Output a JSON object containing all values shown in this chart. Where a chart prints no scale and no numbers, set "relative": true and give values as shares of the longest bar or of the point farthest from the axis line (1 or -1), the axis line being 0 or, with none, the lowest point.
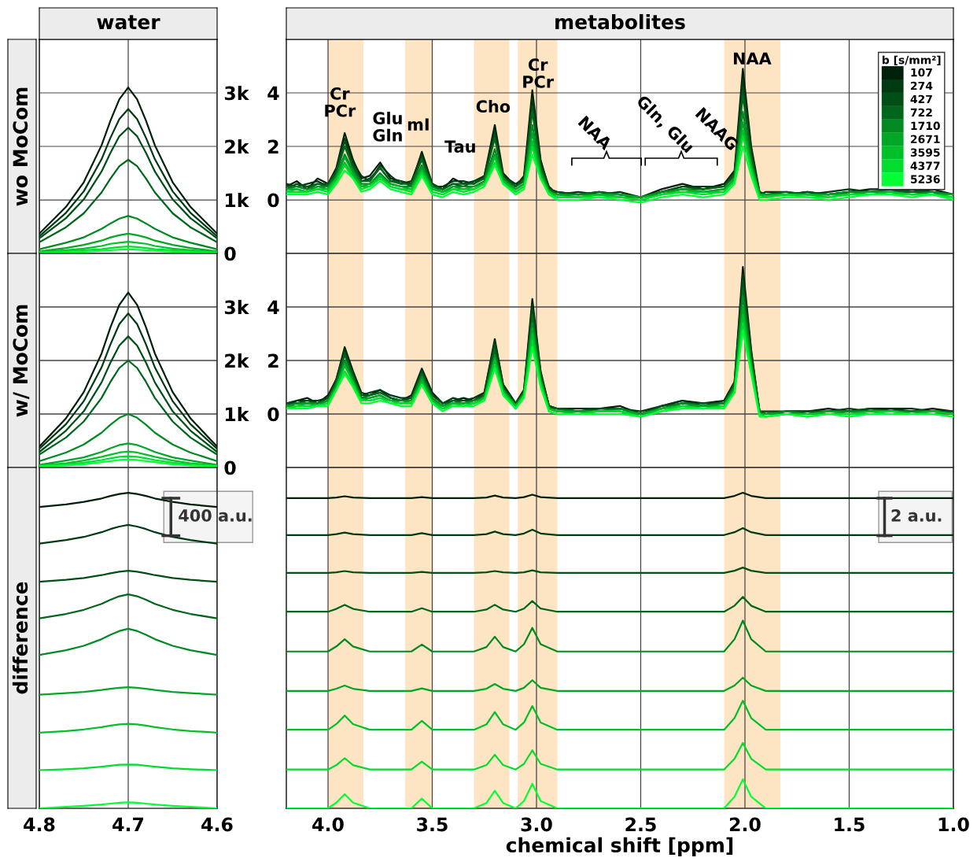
{
  "chart_data": [
    {
      "type": "line",
      "title": "water",
      "ylabel": "wo MoCom",
      "xlim": [
        4.8,
        4.6
      ],
      "xticks": [
        4.8,
        4.7,
        4.6
      ],
      "ylim": [
        0,
        4000
      ],
      "yticks": [
        0,
        {
          "value": 1000,
          "label": "1k"
        },
        {
          "value": 2000,
          "label": "2k"
        },
        {
          "value": 3000,
          "label": "3k"
        }
      ],
      "grid": true,
      "tick_labels": "y",
      "x": [
        4.8,
        4.77,
        4.75,
        4.73,
        4.72,
        4.71,
        4.7,
        4.69,
        4.68,
        4.67,
        4.65,
        4.63,
        4.6
      ],
      "series": [
        {
          "color": "#00200a",
          "values": [
            370,
            870,
            1330,
            2020,
            2480,
            2880,
            3100,
            2880,
            2480,
            2020,
            1330,
            870,
            370
          ]
        },
        {
          "color": "#003a12",
          "values": [
            320,
            760,
            1160,
            1760,
            2160,
            2510,
            2700,
            2510,
            2160,
            1760,
            1160,
            760,
            320
          ]
        },
        {
          "color": "#004f17",
          "values": [
            280,
            660,
            1010,
            1530,
            1880,
            2190,
            2350,
            2190,
            1880,
            1530,
            1010,
            660,
            280
          ]
        },
        {
          "color": "#00661c",
          "values": [
            210,
            490,
            750,
            1140,
            1400,
            1630,
            1750,
            1630,
            1400,
            1140,
            750,
            490,
            210
          ]
        },
        {
          "color": "#008a21",
          "values": [
            80,
            200,
            300,
            460,
            560,
            650,
            700,
            650,
            560,
            460,
            300,
            200,
            80
          ]
        },
        {
          "color": "#00a626",
          "values": [
            40,
            100,
            160,
            240,
            300,
            340,
            370,
            340,
            300,
            240,
            160,
            100,
            40
          ]
        },
        {
          "color": "#00c02a",
          "values": [
            30,
            60,
            90,
            140,
            180,
            200,
            220,
            200,
            180,
            140,
            90,
            60,
            30
          ]
        },
        {
          "color": "#00dd2e",
          "values": [
            20,
            40,
            60,
            80,
            100,
            120,
            130,
            120,
            100,
            80,
            60,
            40,
            20
          ]
        },
        {
          "color": "#00ff33",
          "values": [
            10,
            20,
            30,
            50,
            60,
            70,
            80,
            70,
            60,
            50,
            30,
            20,
            10
          ]
        }
      ]
    },
    {
      "type": "line",
      "title": "metabolites",
      "xlim": [
        4.2,
        1.0
      ],
      "xticks": [
        4.0,
        3.5,
        3.0,
        2.5,
        2.0,
        1.5,
        1.0
      ],
      "ylim": [
        -2,
        6
      ],
      "yticks": [
        0,
        2,
        4
      ],
      "grid": true,
      "tick_labels": "y",
      "legend": "top right",
      "legend_title": "b [s/mm²]",
      "bands": [
        {
          "axis": "x",
          "from": 4.0,
          "to": 3.83,
          "color": "#fde0b8"
        },
        {
          "axis": "x",
          "from": 3.63,
          "to": 3.5,
          "color": "#fde0b8"
        },
        {
          "axis": "x",
          "from": 3.3,
          "to": 3.13,
          "color": "#fde0b8"
        },
        {
          "axis": "x",
          "from": 3.09,
          "to": 2.9,
          "color": "#fde0b8"
        },
        {
          "axis": "x",
          "from": 2.1,
          "to": 1.83,
          "color": "#fde0b8"
        }
      ],
      "annotations": [
        "Cr\nPCr",
        "Glu\nGln",
        "mI",
        "Tau",
        "Cho",
        "Cr\nPCr",
        "NAA",
        "NAA",
        "Gln, Glu",
        "NAAG"
      ],
      "x": [
        4.2,
        4.15,
        4.1,
        4.05,
        4.0,
        3.96,
        3.92,
        3.88,
        3.84,
        3.8,
        3.75,
        3.7,
        3.65,
        3.6,
        3.55,
        3.5,
        3.45,
        3.4,
        3.35,
        3.3,
        3.25,
        3.2,
        3.16,
        3.1,
        3.06,
        3.02,
        2.98,
        2.94,
        2.9,
        2.8,
        2.7,
        2.6,
        2.5,
        2.4,
        2.3,
        2.2,
        2.1,
        2.05,
        2.01,
        1.97,
        1.93,
        1.9,
        1.8,
        1.7,
        1.6,
        1.5,
        1.4,
        1.3,
        1.2,
        1.1,
        1.0
      ],
      "series": [
        {
          "name": "107",
          "color": "#00200a",
          "values": [
            0.5,
            0.7,
            0.4,
            0.8,
            0.6,
            1.2,
            2.5,
            1.5,
            0.8,
            0.9,
            1.4,
            0.8,
            0.7,
            0.6,
            1.8,
            0.6,
            0.4,
            0.8,
            0.6,
            0.7,
            0.9,
            2.8,
            1.0,
            0.5,
            0.9,
            4.1,
            1.5,
            0.4,
            0.3,
            0.2,
            0.3,
            0.2,
            0.1,
            0.4,
            0.6,
            0.4,
            0.6,
            1.1,
            4.9,
            2.0,
            0.3,
            0.2,
            0.2,
            0.3,
            0.2,
            0.3,
            0.4,
            0.4,
            0.3,
            0.4,
            0.2
          ]
        },
        {
          "name": "274",
          "color": "#003a12",
          "values": [
            0.6,
            0.5,
            0.6,
            0.7,
            0.5,
            1.1,
            2.3,
            1.4,
            0.9,
            0.7,
            1.3,
            0.9,
            0.6,
            0.7,
            1.7,
            0.5,
            0.5,
            0.7,
            0.7,
            0.6,
            0.9,
            2.6,
            0.9,
            0.6,
            0.8,
            3.8,
            1.4,
            0.5,
            0.2,
            0.3,
            0.2,
            0.3,
            0.1,
            0.3,
            0.5,
            0.5,
            0.5,
            1.0,
            4.5,
            1.9,
            0.2,
            0.3,
            0.3,
            0.2,
            0.3,
            0.4,
            0.3,
            0.3,
            0.4,
            0.3,
            0.2
          ]
        },
        {
          "name": "427",
          "color": "#004f17",
          "values": [
            0.4,
            0.6,
            0.5,
            0.6,
            0.6,
            1.1,
            2.2,
            1.3,
            0.7,
            0.8,
            1.2,
            0.7,
            0.7,
            0.5,
            1.6,
            0.6,
            0.4,
            0.6,
            0.5,
            0.7,
            0.8,
            2.4,
            0.9,
            0.5,
            0.8,
            3.5,
            1.3,
            0.4,
            0.3,
            0.2,
            0.2,
            0.2,
            0.1,
            0.3,
            0.5,
            0.4,
            0.5,
            1.0,
            4.2,
            1.7,
            0.3,
            0.2,
            0.2,
            0.3,
            0.2,
            0.3,
            0.3,
            0.4,
            0.3,
            0.3,
            0.2
          ]
        },
        {
          "name": "722",
          "color": "#00661c",
          "values": [
            0.5,
            0.5,
            0.4,
            0.6,
            0.5,
            1.0,
            2.0,
            1.2,
            0.7,
            0.7,
            1.2,
            0.7,
            0.6,
            0.6,
            1.5,
            0.5,
            0.4,
            0.6,
            0.6,
            0.6,
            0.8,
            2.3,
            0.8,
            0.5,
            0.7,
            3.3,
            1.2,
            0.4,
            0.2,
            0.2,
            0.3,
            0.2,
            0.1,
            0.3,
            0.4,
            0.4,
            0.5,
            0.9,
            3.9,
            1.6,
            0.2,
            0.2,
            0.3,
            0.2,
            0.2,
            0.3,
            0.3,
            0.3,
            0.3,
            0.3,
            0.2
          ]
        },
        {
          "name": "1710",
          "color": "#008a21",
          "values": [
            0.4,
            0.5,
            0.4,
            0.5,
            0.5,
            0.9,
            1.7,
            1.1,
            0.6,
            0.6,
            1.0,
            0.6,
            0.5,
            0.5,
            1.3,
            0.5,
            0.3,
            0.5,
            0.5,
            0.5,
            0.7,
            1.9,
            0.8,
            0.4,
            0.6,
            2.8,
            1.1,
            0.3,
            0.2,
            0.2,
            0.2,
            0.1,
            0.1,
            0.3,
            0.4,
            0.3,
            0.4,
            0.8,
            3.3,
            1.4,
            0.2,
            0.2,
            0.2,
            0.2,
            0.2,
            0.3,
            0.3,
            0.3,
            0.2,
            0.3,
            0.2
          ]
        },
        {
          "name": "2671",
          "color": "#00a626",
          "values": [
            0.4,
            0.4,
            0.3,
            0.5,
            0.4,
            0.8,
            1.6,
            1.0,
            0.5,
            0.6,
            0.9,
            0.6,
            0.5,
            0.4,
            1.2,
            0.4,
            0.3,
            0.5,
            0.4,
            0.5,
            0.6,
            1.7,
            0.7,
            0.4,
            0.6,
            2.5,
            1.0,
            0.3,
            0.2,
            0.1,
            0.2,
            0.2,
            0.1,
            0.2,
            0.4,
            0.3,
            0.4,
            0.8,
            2.9,
            1.3,
            0.2,
            0.2,
            0.2,
            0.2,
            0.2,
            0.2,
            0.3,
            0.3,
            0.2,
            0.2,
            0.2
          ]
        },
        {
          "name": "3595",
          "color": "#00c02a",
          "values": [
            0.3,
            0.4,
            0.3,
            0.4,
            0.4,
            0.8,
            1.4,
            0.9,
            0.5,
            0.5,
            0.9,
            0.5,
            0.4,
            0.4,
            1.1,
            0.4,
            0.3,
            0.4,
            0.4,
            0.4,
            0.6,
            1.6,
            0.7,
            0.3,
            0.5,
            2.2,
            0.9,
            0.3,
            0.1,
            0.1,
            0.2,
            0.1,
            0.0,
            0.2,
            0.3,
            0.3,
            0.3,
            0.7,
            2.6,
            1.2,
            0.2,
            0.1,
            0.2,
            0.2,
            0.1,
            0.2,
            0.2,
            0.3,
            0.2,
            0.2,
            0.1
          ]
        },
        {
          "name": "4377",
          "color": "#00dd2e",
          "values": [
            0.3,
            0.3,
            0.3,
            0.4,
            0.3,
            0.7,
            1.3,
            0.8,
            0.4,
            0.5,
            0.8,
            0.5,
            0.4,
            0.3,
            1.0,
            0.3,
            0.2,
            0.4,
            0.3,
            0.4,
            0.6,
            1.4,
            0.6,
            0.3,
            0.5,
            2.0,
            0.8,
            0.2,
            0.1,
            0.1,
            0.1,
            0.1,
            0.0,
            0.2,
            0.3,
            0.2,
            0.3,
            0.7,
            2.4,
            1.1,
            0.1,
            0.1,
            0.2,
            0.1,
            0.1,
            0.2,
            0.2,
            0.2,
            0.2,
            0.2,
            0.1
          ]
        },
        {
          "name": "5236",
          "color": "#00ff33",
          "values": [
            0.2,
            0.2,
            0.2,
            0.3,
            0.2,
            0.6,
            1.1,
            0.8,
            0.3,
            0.4,
            0.7,
            0.4,
            0.3,
            0.2,
            0.9,
            0.2,
            0.1,
            0.3,
            0.2,
            0.3,
            0.5,
            1.3,
            0.6,
            0.2,
            0.4,
            1.7,
            0.8,
            0.2,
            0.0,
            0.0,
            0.1,
            0.0,
            -0.1,
            0.1,
            0.2,
            0.1,
            0.2,
            0.6,
            2.0,
            0.9,
            0.0,
            0.0,
            0.1,
            0.1,
            0.0,
            0.1,
            0.2,
            0.2,
            0.1,
            0.2,
            0.0
          ]
        }
      ]
    },
    {
      "type": "line",
      "ylabel": "w/ MoCom",
      "xlim": [
        4.8,
        4.6
      ],
      "xticks": [
        4.8,
        4.7,
        4.6
      ],
      "ylim": [
        0,
        4000
      ],
      "yticks": [
        0,
        {
          "value": 1000,
          "label": "1k"
        },
        {
          "value": 2000,
          "label": "2k"
        },
        {
          "value": 3000,
          "label": "3k"
        }
      ],
      "grid": true,
      "tick_labels": "y",
      "x": [
        4.8,
        4.77,
        4.75,
        4.73,
        4.72,
        4.71,
        4.7,
        4.69,
        4.68,
        4.67,
        4.65,
        4.63,
        4.6
      ],
      "series": [
        {
          "color": "#00200a",
          "values": [
            390,
            920,
            1410,
            2130,
            2620,
            3040,
            3270,
            3040,
            2620,
            2130,
            1410,
            920,
            390
          ]
        },
        {
          "color": "#003a12",
          "values": [
            350,
            810,
            1240,
            1870,
            2300,
            2680,
            2880,
            2680,
            2300,
            1870,
            1240,
            810,
            350
          ]
        },
        {
          "color": "#004f17",
          "values": [
            290,
            690,
            1050,
            1590,
            1960,
            2280,
            2450,
            2280,
            1960,
            1590,
            1050,
            690,
            290
          ]
        },
        {
          "color": "#00661c",
          "values": [
            240,
            560,
            860,
            1300,
            1600,
            1860,
            2000,
            1860,
            1600,
            1300,
            860,
            560,
            240
          ]
        },
        {
          "color": "#008a21",
          "values": [
            120,
            280,
            430,
            650,
            800,
            930,
            1000,
            930,
            800,
            650,
            430,
            280,
            120
          ]
        },
        {
          "color": "#00a626",
          "values": [
            50,
            130,
            190,
            290,
            360,
            420,
            450,
            420,
            360,
            290,
            190,
            130,
            50
          ]
        },
        {
          "color": "#00c02a",
          "values": [
            40,
            80,
            130,
            200,
            240,
            280,
            300,
            280,
            240,
            200,
            130,
            80,
            40
          ]
        },
        {
          "color": "#00dd2e",
          "values": [
            30,
            60,
            90,
            140,
            170,
            200,
            210,
            200,
            170,
            140,
            90,
            60,
            30
          ]
        },
        {
          "color": "#00ff33",
          "values": [
            20,
            40,
            60,
            100,
            120,
            140,
            150,
            140,
            120,
            100,
            60,
            40,
            20
          ]
        }
      ]
    },
    {
      "type": "line",
      "xlim": [
        4.2,
        1.0
      ],
      "xticks": [
        4.0,
        3.5,
        3.0,
        2.5,
        2.0,
        1.5,
        1.0
      ],
      "ylim": [
        -2,
        6
      ],
      "yticks": [
        0,
        2,
        4
      ],
      "grid": true,
      "tick_labels": "y",
      "bands": [
        {
          "axis": "x",
          "from": 4.0,
          "to": 3.83,
          "color": "#fde0b8"
        },
        {
          "axis": "x",
          "from": 3.63,
          "to": 3.5,
          "color": "#fde0b8"
        },
        {
          "axis": "x",
          "from": 3.3,
          "to": 3.13,
          "color": "#fde0b8"
        },
        {
          "axis": "x",
          "from": 3.09,
          "to": 2.9,
          "color": "#fde0b8"
        },
        {
          "axis": "x",
          "from": 2.1,
          "to": 1.83,
          "color": "#fde0b8"
        }
      ],
      "x": [
        4.2,
        4.15,
        4.1,
        4.05,
        4.0,
        3.96,
        3.92,
        3.88,
        3.84,
        3.8,
        3.75,
        3.7,
        3.65,
        3.6,
        3.55,
        3.5,
        3.45,
        3.4,
        3.35,
        3.3,
        3.25,
        3.2,
        3.16,
        3.1,
        3.06,
        3.02,
        2.98,
        2.94,
        2.9,
        2.8,
        2.7,
        2.6,
        2.5,
        2.4,
        2.3,
        2.2,
        2.1,
        2.05,
        2.01,
        1.97,
        1.93,
        1.9,
        1.8,
        1.7,
        1.6,
        1.5,
        1.4,
        1.3,
        1.2,
        1.1,
        1.0
      ],
      "series": [
        {
          "color": "#00200a",
          "values": [
            0.3,
            0.5,
            0.6,
            0.4,
            0.7,
            1.3,
            2.5,
            1.6,
            0.8,
            0.7,
            0.9,
            0.6,
            0.5,
            0.7,
            1.7,
            0.8,
            0.4,
            0.5,
            0.6,
            0.5,
            0.8,
            2.8,
            1.1,
            0.4,
            0.9,
            4.3,
            1.6,
            0.3,
            0.2,
            0.1,
            0.2,
            0.3,
            0.0,
            0.3,
            0.5,
            0.4,
            0.5,
            1.2,
            5.5,
            2.4,
            0.1,
            0.0,
            0.1,
            0.1,
            0.2,
            0.1,
            0.2,
            0.2,
            0.1,
            0.2,
            0.1
          ]
        },
        {
          "color": "#003a12",
          "values": [
            0.4,
            0.5,
            0.5,
            0.5,
            0.6,
            1.3,
            2.4,
            1.5,
            0.7,
            0.8,
            0.9,
            0.7,
            0.6,
            0.6,
            1.6,
            0.7,
            0.4,
            0.6,
            0.5,
            0.6,
            0.8,
            2.7,
            1.1,
            0.4,
            0.9,
            4.1,
            1.5,
            0.3,
            0.2,
            0.2,
            0.2,
            0.2,
            0.1,
            0.3,
            0.5,
            0.3,
            0.5,
            1.2,
            5.2,
            2.3,
            0.1,
            0.1,
            0.1,
            0.1,
            0.1,
            0.2,
            0.1,
            0.2,
            0.2,
            0.1,
            0.1
          ]
        },
        {
          "color": "#004f17",
          "values": [
            0.4,
            0.4,
            0.5,
            0.4,
            0.6,
            1.2,
            2.3,
            1.5,
            0.7,
            0.7,
            0.8,
            0.6,
            0.5,
            0.6,
            1.6,
            0.7,
            0.4,
            0.5,
            0.5,
            0.5,
            0.7,
            2.6,
            1.0,
            0.4,
            0.8,
            3.9,
            1.5,
            0.3,
            0.2,
            0.1,
            0.2,
            0.2,
            0.0,
            0.3,
            0.4,
            0.4,
            0.4,
            1.1,
            5.0,
            2.2,
            0.1,
            0.0,
            0.1,
            0.1,
            0.1,
            0.1,
            0.2,
            0.1,
            0.1,
            0.1,
            0.1
          ]
        },
        {
          "color": "#00661c",
          "values": [
            0.3,
            0.4,
            0.4,
            0.4,
            0.5,
            1.2,
            2.2,
            1.4,
            0.6,
            0.7,
            0.8,
            0.6,
            0.5,
            0.5,
            1.5,
            0.6,
            0.3,
            0.5,
            0.4,
            0.5,
            0.7,
            2.4,
            1.0,
            0.3,
            0.8,
            3.7,
            1.4,
            0.2,
            0.2,
            0.1,
            0.1,
            0.2,
            0.0,
            0.2,
            0.4,
            0.3,
            0.4,
            1.1,
            4.7,
            2.1,
            0.1,
            0.0,
            0.1,
            0.0,
            0.1,
            0.1,
            0.1,
            0.1,
            0.1,
            0.1,
            0.0
          ]
        },
        {
          "color": "#008a21",
          "values": [
            0.3,
            0.4,
            0.4,
            0.4,
            0.5,
            1.1,
            2.0,
            1.3,
            0.6,
            0.6,
            0.7,
            0.5,
            0.5,
            0.5,
            1.4,
            0.6,
            0.3,
            0.4,
            0.4,
            0.5,
            0.6,
            2.2,
            0.9,
            0.3,
            0.8,
            3.4,
            1.3,
            0.2,
            0.1,
            0.1,
            0.1,
            0.2,
            0.0,
            0.2,
            0.4,
            0.3,
            0.4,
            1.0,
            4.4,
            1.9,
            0.0,
            0.0,
            0.1,
            0.0,
            0.1,
            0.1,
            0.1,
            0.1,
            0.1,
            0.1,
            0.0
          ]
        },
        {
          "color": "#00a626",
          "values": [
            0.3,
            0.3,
            0.4,
            0.3,
            0.5,
            1.0,
            1.9,
            1.2,
            0.5,
            0.6,
            0.7,
            0.5,
            0.4,
            0.5,
            1.3,
            0.5,
            0.3,
            0.4,
            0.4,
            0.4,
            0.6,
            2.1,
            0.9,
            0.3,
            0.7,
            3.2,
            1.2,
            0.2,
            0.1,
            0.1,
            0.1,
            0.1,
            0.0,
            0.2,
            0.3,
            0.3,
            0.3,
            0.9,
            4.0,
            1.8,
            0.0,
            0.0,
            0.0,
            0.0,
            0.1,
            0.0,
            0.1,
            0.1,
            0.0,
            0.1,
            0.0
          ]
        },
        {
          "color": "#00c02a",
          "values": [
            0.2,
            0.3,
            0.3,
            0.3,
            0.4,
            1.0,
            1.8,
            1.2,
            0.5,
            0.5,
            0.6,
            0.5,
            0.4,
            0.4,
            1.2,
            0.5,
            0.2,
            0.4,
            0.3,
            0.4,
            0.6,
            2.0,
            0.8,
            0.3,
            0.7,
            3.0,
            1.2,
            0.2,
            0.1,
            0.0,
            0.1,
            0.1,
            -0.1,
            0.2,
            0.3,
            0.2,
            0.3,
            0.9,
            3.7,
            1.7,
            0.0,
            -0.1,
            0.0,
            0.0,
            0.0,
            0.0,
            0.1,
            0.1,
            0.0,
            0.1,
            0.0
          ]
        },
        {
          "color": "#00dd2e",
          "values": [
            0.2,
            0.3,
            0.3,
            0.3,
            0.4,
            0.9,
            1.6,
            1.1,
            0.5,
            0.5,
            0.6,
            0.4,
            0.4,
            0.4,
            1.1,
            0.4,
            0.2,
            0.3,
            0.3,
            0.4,
            0.5,
            1.8,
            0.8,
            0.2,
            0.7,
            2.7,
            1.1,
            0.1,
            0.0,
            0.0,
            0.1,
            0.1,
            -0.1,
            0.1,
            0.3,
            0.2,
            0.3,
            0.8,
            3.4,
            1.6,
            0.0,
            -0.1,
            0.0,
            -0.1,
            0.0,
            0.0,
            0.0,
            0.1,
            0.0,
            0.0,
            -0.1
          ]
        },
        {
          "color": "#00ff33",
          "values": [
            0.2,
            0.2,
            0.2,
            0.3,
            0.3,
            0.9,
            1.5,
            1.0,
            0.4,
            0.4,
            0.5,
            0.4,
            0.3,
            0.3,
            1.1,
            0.4,
            0.1,
            0.3,
            0.3,
            0.3,
            0.5,
            1.7,
            0.7,
            0.2,
            0.6,
            2.5,
            1.0,
            0.1,
            0.0,
            0.0,
            0.0,
            0.0,
            -0.1,
            0.1,
            0.2,
            0.2,
            0.2,
            0.8,
            3.1,
            1.5,
            -0.1,
            -0.1,
            0.0,
            -0.1,
            0.0,
            -0.1,
            0.0,
            0.0,
            0.0,
            0.0,
            -0.1
          ]
        }
      ]
    },
    {
      "type": "line",
      "ylabel": "difference",
      "relative": true,
      "xlim": [
        4.8,
        4.6
      ],
      "xticks": [
        4.8,
        4.7,
        4.6
      ],
      "grid": "x",
      "tick_labels": "x",
      "annotations": [
        "400 a.u."
      ],
      "x": [
        4.8,
        4.77,
        4.75,
        4.73,
        4.72,
        4.71,
        4.7,
        4.69,
        4.68,
        4.67,
        4.65,
        4.63,
        4.6
      ],
      "series": [
        {
          "color": "#00200a",
          "values": [
            0.955,
            0.963,
            0.971,
            0.982,
            0.99,
            0.996,
            1.0,
            0.996,
            0.99,
            0.982,
            0.971,
            0.963,
            0.955
          ]
        },
        {
          "color": "#003a12",
          "values": [
            0.839,
            0.85,
            0.86,
            0.875,
            0.885,
            0.893,
            0.898,
            0.893,
            0.885,
            0.875,
            0.86,
            0.85,
            0.839
          ]
        },
        {
          "color": "#004f17",
          "values": [
            0.718,
            0.724,
            0.73,
            0.739,
            0.745,
            0.75,
            0.753,
            0.75,
            0.745,
            0.739,
            0.73,
            0.724,
            0.718
          ]
        },
        {
          "color": "#00661c",
          "values": [
            0.602,
            0.616,
            0.629,
            0.648,
            0.661,
            0.672,
            0.678,
            0.672,
            0.661,
            0.648,
            0.629,
            0.616,
            0.602
          ]
        },
        {
          "color": "#008a21",
          "values": [
            0.486,
            0.501,
            0.515,
            0.536,
            0.55,
            0.562,
            0.569,
            0.562,
            0.55,
            0.536,
            0.515,
            0.501,
            0.486
          ]
        },
        {
          "color": "#00a626",
          "values": [
            0.36,
            0.365,
            0.369,
            0.375,
            0.379,
            0.382,
            0.384,
            0.382,
            0.379,
            0.375,
            0.369,
            0.365,
            0.36
          ]
        },
        {
          "color": "#00c02a",
          "values": [
            0.24,
            0.245,
            0.25,
            0.257,
            0.262,
            0.266,
            0.268,
            0.266,
            0.262,
            0.257,
            0.25,
            0.245,
            0.24
          ]
        },
        {
          "color": "#00dd2e",
          "values": [
            0.121,
            0.124,
            0.127,
            0.132,
            0.135,
            0.138,
            0.139,
            0.138,
            0.135,
            0.132,
            0.127,
            0.124,
            0.121
          ]
        },
        {
          "color": "#00ff33",
          "values": [
            0.0,
            0.005,
            0.008,
            0.012,
            0.015,
            0.018,
            0.019,
            0.018,
            0.015,
            0.012,
            0.008,
            0.005,
            0.0
          ]
        }
      ]
    },
    {
      "type": "line",
      "xlabel": "chemical shift [ppm]",
      "relative": true,
      "xlim": [
        4.2,
        1.0
      ],
      "xticks": [
        {
          "value": 4.0,
          "label": "4.0"
        },
        3.5,
        {
          "value": 3.0,
          "label": "3.0"
        },
        2.5,
        {
          "value": 2.0,
          "label": "2.0"
        },
        1.5,
        {
          "value": 1.0,
          "label": "1.0"
        }
      ],
      "grid": "x",
      "tick_labels": "x",
      "annotations": [
        "2 a.u."
      ],
      "bands": [
        {
          "axis": "x",
          "from": 4.0,
          "to": 3.83,
          "color": "#fde0b8"
        },
        {
          "axis": "x",
          "from": 3.63,
          "to": 3.5,
          "color": "#fde0b8"
        },
        {
          "axis": "x",
          "from": 3.3,
          "to": 3.13,
          "color": "#fde0b8"
        },
        {
          "axis": "x",
          "from": 3.09,
          "to": 2.9,
          "color": "#fde0b8"
        },
        {
          "axis": "x",
          "from": 2.1,
          "to": 1.83,
          "color": "#fde0b8"
        }
      ],
      "x": [
        4.2,
        4.0,
        3.96,
        3.92,
        3.88,
        3.8,
        3.6,
        3.55,
        3.5,
        3.3,
        3.24,
        3.2,
        3.16,
        3.1,
        3.06,
        3.02,
        2.98,
        2.9,
        2.5,
        2.1,
        2.05,
        2.01,
        1.97,
        1.9,
        1.0
      ],
      "series": [
        {
          "color": "#00200a",
          "values": [
            0.983,
            0.983,
            0.985,
            0.989,
            0.985,
            0.983,
            0.983,
            0.986,
            0.983,
            0.983,
            0.985,
            0.991,
            0.985,
            0.983,
            0.986,
            0.994,
            0.986,
            0.983,
            0.983,
            0.983,
            0.99,
            1.0,
            0.99,
            0.983,
            0.983
          ]
        },
        {
          "color": "#003a12",
          "values": [
            0.866,
            0.866,
            0.869,
            0.874,
            0.869,
            0.866,
            0.866,
            0.872,
            0.866,
            0.866,
            0.869,
            0.877,
            0.869,
            0.866,
            0.871,
            0.883,
            0.871,
            0.866,
            0.866,
            0.866,
            0.875,
            0.888,
            0.875,
            0.866,
            0.866
          ]
        },
        {
          "color": "#004f17",
          "values": [
            0.746,
            0.746,
            0.748,
            0.752,
            0.748,
            0.746,
            0.746,
            0.749,
            0.746,
            0.746,
            0.748,
            0.752,
            0.748,
            0.746,
            0.748,
            0.754,
            0.748,
            0.746,
            0.746,
            0.746,
            0.753,
            0.763,
            0.753,
            0.746,
            0.746
          ]
        },
        {
          "color": "#00661c",
          "values": [
            0.623,
            0.623,
            0.632,
            0.645,
            0.632,
            0.623,
            0.623,
            0.634,
            0.623,
            0.623,
            0.63,
            0.645,
            0.63,
            0.623,
            0.633,
            0.657,
            0.633,
            0.623,
            0.623,
            0.623,
            0.642,
            0.67,
            0.642,
            0.623,
            0.623
          ]
        },
        {
          "color": "#008a21",
          "values": [
            0.497,
            0.497,
            0.513,
            0.536,
            0.513,
            0.497,
            0.497,
            0.519,
            0.497,
            0.497,
            0.511,
            0.544,
            0.511,
            0.497,
            0.52,
            0.572,
            0.52,
            0.497,
            0.497,
            0.497,
            0.536,
            0.595,
            0.536,
            0.497,
            0.497
          ]
        },
        {
          "color": "#00a626",
          "values": [
            0.372,
            0.372,
            0.379,
            0.389,
            0.379,
            0.372,
            0.372,
            0.38,
            0.372,
            0.372,
            0.379,
            0.394,
            0.379,
            0.372,
            0.382,
            0.406,
            0.382,
            0.372,
            0.372,
            0.372,
            0.389,
            0.414,
            0.389,
            0.372,
            0.372
          ]
        },
        {
          "color": "#00c02a",
          "values": [
            0.249,
            0.249,
            0.267,
            0.294,
            0.267,
            0.249,
            0.249,
            0.277,
            0.249,
            0.249,
            0.266,
            0.305,
            0.266,
            0.249,
            0.272,
            0.324,
            0.272,
            0.249,
            0.249,
            0.249,
            0.286,
            0.341,
            0.286,
            0.249,
            0.249
          ]
        },
        {
          "color": "#00dd2e",
          "values": [
            0.123,
            0.123,
            0.137,
            0.159,
            0.137,
            0.123,
            0.123,
            0.148,
            0.123,
            0.123,
            0.137,
            0.17,
            0.137,
            0.123,
            0.141,
            0.184,
            0.141,
            0.123,
            0.123,
            0.123,
            0.157,
            0.207,
            0.157,
            0.123,
            0.123
          ]
        },
        {
          "color": "#00ff33",
          "values": [
            0,
            0,
            0.018,
            0.045,
            0.018,
            0,
            0,
            0.031,
            0,
            0,
            0.017,
            0.056,
            0.017,
            0,
            0.023,
            0.078,
            0.023,
            0,
            0,
            0,
            0.037,
            0.092,
            0.037,
            0,
            0
          ]
        }
      ]
    }
  ]
}
